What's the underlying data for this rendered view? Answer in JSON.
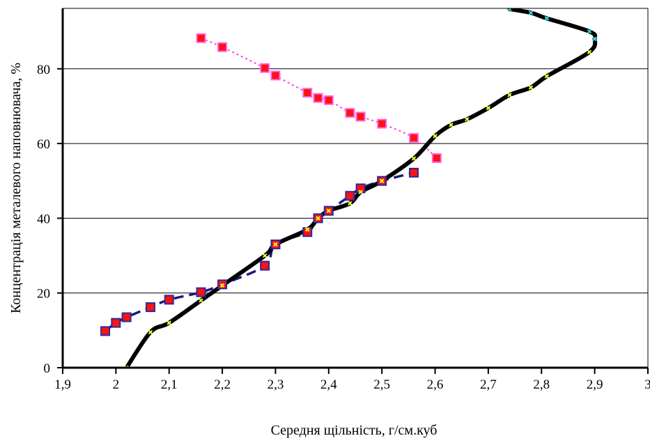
{
  "chart_data": {
    "type": "scatter",
    "xlabel": "Середня щільність, г/см.куб",
    "ylabel": "Концентрація металевого наповнювача, %",
    "xlim": [
      1.9,
      3.0
    ],
    "ylim": [
      0,
      96
    ],
    "x_ticks": [
      "1,9",
      "2",
      "2,1",
      "2,2",
      "2,3",
      "2,4",
      "2,5",
      "2,6",
      "2,7",
      "2,8",
      "2,9",
      "3"
    ],
    "y_ticks": [
      "0",
      "20",
      "40",
      "60",
      "80"
    ],
    "grid": "horizontal",
    "legend": "none",
    "colors": {
      "thick_curve": "#000000",
      "small_markers": "#ffff33",
      "small_markers_top": "#33dddd",
      "pink_series_line": "#ff44dd",
      "pink_series_marker_fill": "#ff1111",
      "pink_series_marker_edge": "#ff66ee",
      "blue_series_line": "#1a1a80",
      "blue_series_marker_fill": "#ff1111",
      "blue_series_marker_edge": "#2b2b99"
    },
    "series": [
      {
        "style": "thick-curve",
        "x": [
          2.02,
          2.065,
          2.1,
          2.16,
          2.2,
          2.28,
          2.3,
          2.36,
          2.38,
          2.4,
          2.44,
          2.46,
          2.5,
          2.56,
          2.6,
          2.63,
          2.66,
          2.7,
          2.74,
          2.78,
          2.81,
          2.89,
          2.9,
          2.89,
          2.81,
          2.78,
          2.74
        ],
        "y": [
          0,
          9.5,
          12,
          18,
          22,
          30,
          33,
          37,
          40,
          42,
          44,
          47,
          50,
          56,
          62,
          65,
          66.5,
          69.5,
          73,
          75,
          78,
          84.5,
          88,
          90,
          93.5,
          95,
          96
        ]
      },
      {
        "style": "blue-dashed-squares",
        "x": [
          1.98,
          2.0,
          2.02,
          2.065,
          2.1,
          2.16,
          2.2,
          2.28,
          2.3,
          2.36,
          2.38,
          2.4,
          2.44,
          2.46,
          2.5,
          2.56
        ],
        "y": [
          9.8,
          12,
          13.5,
          16.2,
          18.2,
          20.2,
          22.3,
          27.3,
          33,
          36.3,
          40,
          42,
          46,
          48,
          50,
          52.2
        ]
      },
      {
        "style": "pink-dotted-squares",
        "x": [
          2.16,
          2.2,
          2.28,
          2.3,
          2.36,
          2.38,
          2.4,
          2.44,
          2.46,
          2.5,
          2.56,
          2.603
        ],
        "y": [
          88.2,
          85.8,
          80.2,
          78.2,
          73.6,
          72.2,
          71.6,
          68.2,
          67.2,
          65.3,
          61.5,
          56.1
        ]
      }
    ]
  }
}
